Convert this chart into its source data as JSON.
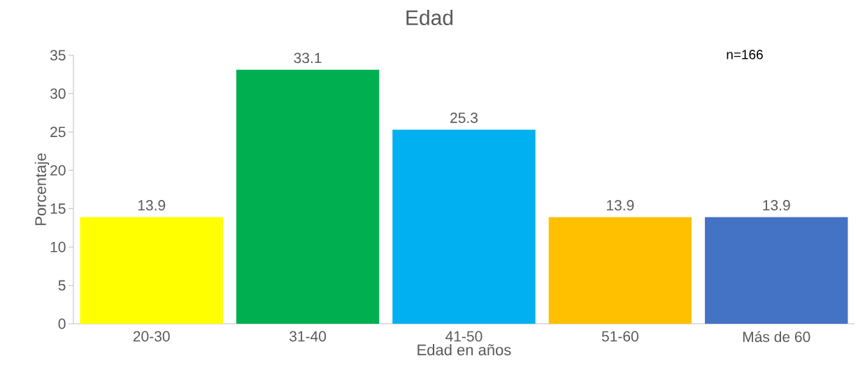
{
  "chart_data": {
    "type": "bar",
    "title": "Edad",
    "xlabel": "Edad  en años",
    "ylabel": "Porcentaje",
    "categories": [
      "20-30",
      "31-40",
      "41-50",
      "51-60",
      "Más de 60"
    ],
    "values": [
      13.9,
      33.1,
      25.3,
      13.9,
      13.9
    ],
    "colors": [
      "#ffff00",
      "#00b050",
      "#00b0f0",
      "#ffc000",
      "#4472c4"
    ],
    "ylim": [
      0,
      35
    ],
    "yticks": [
      0,
      5,
      10,
      15,
      20,
      25,
      30,
      35
    ],
    "data_labels": true,
    "grid": false,
    "annotations": [
      "n=166"
    ]
  }
}
